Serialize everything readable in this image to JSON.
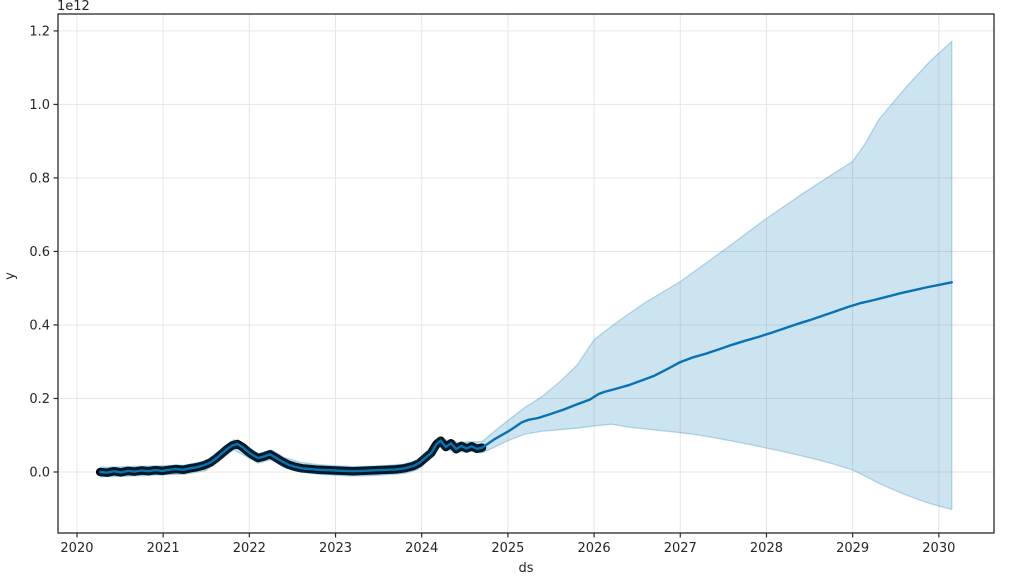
{
  "figure": {
    "offset_text": "1e12",
    "ylabel": "y",
    "xlabel": "ds"
  },
  "chart_data": {
    "type": "line",
    "title": "",
    "xlabel": "ds",
    "ylabel": "y",
    "y_offset_text": "1e12",
    "y_unit_scale": 1000000000000,
    "xlim": [
      2019.78,
      2030.64
    ],
    "ylim": [
      -0.166,
      1.246
    ],
    "grid": true,
    "legend_position": "none",
    "x_ticks": {
      "values": [
        2020,
        2021,
        2022,
        2023,
        2024,
        2025,
        2026,
        2027,
        2028,
        2029,
        2030
      ],
      "labels": [
        "2020",
        "2021",
        "2022",
        "2023",
        "2024",
        "2025",
        "2026",
        "2027",
        "2028",
        "2029",
        "2030"
      ]
    },
    "y_ticks": {
      "values": [
        0.0,
        0.2,
        0.4,
        0.6,
        0.8,
        1.0,
        1.2
      ],
      "labels": [
        "0.0",
        "0.2",
        "0.4",
        "0.6",
        "0.8",
        "1.0",
        "1.2"
      ]
    },
    "colors": {
      "observed": "#000000",
      "forecast_line": "#0c72b2",
      "band_fill": "rgba(0,114,178,0.2)",
      "band_edge": "rgba(0,114,178,0.25)",
      "grid": "#e6e6e6",
      "spine": "#2a2a2a",
      "tick_label": "#262626"
    },
    "series": [
      {
        "name": "observed",
        "type": "scatter",
        "x": [
          2020.27,
          2020.35,
          2020.43,
          2020.51,
          2020.59,
          2020.67,
          2020.75,
          2020.83,
          2020.91,
          2020.99,
          2021.07,
          2021.15,
          2021.23,
          2021.31,
          2021.39,
          2021.47,
          2021.55,
          2021.62,
          2021.68,
          2021.74,
          2021.8,
          2021.86,
          2021.92,
          2021.98,
          2022.04,
          2022.1,
          2022.17,
          2022.24,
          2022.3,
          2022.37,
          2022.45,
          2022.53,
          2022.61,
          2022.7,
          2022.8,
          2022.9,
          2023.0,
          2023.1,
          2023.2,
          2023.3,
          2023.4,
          2023.5,
          2023.6,
          2023.7,
          2023.8,
          2023.9,
          2023.97,
          2024.04,
          2024.11,
          2024.17,
          2024.22,
          2024.28,
          2024.34,
          2024.4,
          2024.46,
          2024.52,
          2024.58,
          2024.64,
          2024.7
        ],
        "y": [
          0.0,
          -0.002,
          0.002,
          -0.001,
          0.003,
          0.001,
          0.004,
          0.002,
          0.005,
          0.003,
          0.006,
          0.008,
          0.006,
          0.01,
          0.013,
          0.018,
          0.026,
          0.038,
          0.05,
          0.062,
          0.072,
          0.076,
          0.068,
          0.056,
          0.046,
          0.038,
          0.042,
          0.048,
          0.04,
          0.03,
          0.02,
          0.014,
          0.01,
          0.008,
          0.006,
          0.005,
          0.004,
          0.003,
          0.002,
          0.003,
          0.004,
          0.005,
          0.006,
          0.007,
          0.01,
          0.016,
          0.024,
          0.038,
          0.052,
          0.075,
          0.085,
          0.068,
          0.078,
          0.062,
          0.071,
          0.064,
          0.07,
          0.063,
          0.066
        ]
      },
      {
        "name": "forecast",
        "type": "line",
        "x": [
          2020.27,
          2020.35,
          2020.43,
          2020.51,
          2020.59,
          2020.67,
          2020.75,
          2020.83,
          2020.91,
          2020.99,
          2021.07,
          2021.15,
          2021.23,
          2021.31,
          2021.39,
          2021.47,
          2021.55,
          2021.62,
          2021.68,
          2021.74,
          2021.8,
          2021.86,
          2021.92,
          2021.98,
          2022.04,
          2022.1,
          2022.17,
          2022.24,
          2022.3,
          2022.37,
          2022.45,
          2022.53,
          2022.61,
          2022.7,
          2022.8,
          2022.9,
          2023.0,
          2023.1,
          2023.2,
          2023.3,
          2023.4,
          2023.5,
          2023.6,
          2023.7,
          2023.8,
          2023.9,
          2023.97,
          2024.04,
          2024.11,
          2024.17,
          2024.22,
          2024.28,
          2024.34,
          2024.4,
          2024.46,
          2024.52,
          2024.58,
          2024.64,
          2024.7,
          2024.85,
          2025.0,
          2025.08,
          2025.16,
          2025.24,
          2025.35,
          2025.5,
          2025.65,
          2025.8,
          2025.95,
          2026.05,
          2026.12,
          2026.25,
          2026.4,
          2026.55,
          2026.7,
          2026.85,
          2027.0,
          2027.15,
          2027.3,
          2027.45,
          2027.6,
          2027.75,
          2027.9,
          2028.05,
          2028.2,
          2028.35,
          2028.5,
          2028.65,
          2028.8,
          2028.95,
          2029.1,
          2029.25,
          2029.4,
          2029.55,
          2029.7,
          2029.85,
          2030.0,
          2030.15
        ],
        "y": [
          0.0,
          -0.002,
          0.002,
          -0.001,
          0.003,
          0.001,
          0.004,
          0.002,
          0.005,
          0.003,
          0.006,
          0.008,
          0.006,
          0.01,
          0.013,
          0.018,
          0.026,
          0.038,
          0.05,
          0.062,
          0.072,
          0.076,
          0.068,
          0.056,
          0.046,
          0.038,
          0.042,
          0.048,
          0.04,
          0.03,
          0.02,
          0.014,
          0.01,
          0.008,
          0.006,
          0.005,
          0.004,
          0.003,
          0.002,
          0.003,
          0.004,
          0.005,
          0.006,
          0.007,
          0.01,
          0.016,
          0.024,
          0.038,
          0.052,
          0.075,
          0.085,
          0.068,
          0.078,
          0.062,
          0.071,
          0.064,
          0.07,
          0.063,
          0.066,
          0.09,
          0.11,
          0.122,
          0.135,
          0.142,
          0.147,
          0.158,
          0.17,
          0.184,
          0.197,
          0.212,
          0.218,
          0.226,
          0.236,
          0.249,
          0.262,
          0.28,
          0.299,
          0.312,
          0.322,
          0.334,
          0.346,
          0.357,
          0.367,
          0.378,
          0.39,
          0.402,
          0.413,
          0.425,
          0.437,
          0.449,
          0.46,
          0.468,
          0.477,
          0.486,
          0.494,
          0.502,
          0.509,
          0.516
        ]
      },
      {
        "name": "uncertainty_interval",
        "type": "band",
        "x": [
          2020.27,
          2020.5,
          2020.75,
          2021.0,
          2021.25,
          2021.5,
          2021.7,
          2021.82,
          2021.95,
          2022.1,
          2022.26,
          2022.4,
          2022.6,
          2022.8,
          2023.0,
          2023.2,
          2023.4,
          2023.6,
          2023.8,
          2023.95,
          2024.1,
          2024.2,
          2024.3,
          2024.42,
          2024.54,
          2024.7,
          2024.85,
          2025.0,
          2025.2,
          2025.4,
          2025.6,
          2025.8,
          2026.0,
          2026.2,
          2026.4,
          2026.6,
          2026.8,
          2027.0,
          2027.2,
          2027.4,
          2027.6,
          2027.8,
          2028.0,
          2028.2,
          2028.4,
          2028.6,
          2028.8,
          2029.0,
          2029.15,
          2029.3,
          2029.45,
          2029.6,
          2029.75,
          2029.9,
          2030.05,
          2030.15
        ],
        "lower": [
          -0.013,
          -0.012,
          -0.01,
          -0.008,
          -0.006,
          0.004,
          0.04,
          0.06,
          0.044,
          0.024,
          0.034,
          0.013,
          0.0,
          -0.006,
          -0.009,
          -0.011,
          -0.01,
          -0.008,
          -0.004,
          0.006,
          0.036,
          0.068,
          0.06,
          0.054,
          0.056,
          0.052,
          0.068,
          0.085,
          0.103,
          0.111,
          0.115,
          0.119,
          0.125,
          0.13,
          0.122,
          0.117,
          0.112,
          0.107,
          0.101,
          0.093,
          0.084,
          0.075,
          0.065,
          0.055,
          0.044,
          0.033,
          0.02,
          0.005,
          -0.012,
          -0.03,
          -0.046,
          -0.061,
          -0.074,
          -0.086,
          -0.096,
          -0.102
        ],
        "upper": [
          0.013,
          0.014,
          0.016,
          0.017,
          0.019,
          0.03,
          0.066,
          0.088,
          0.072,
          0.05,
          0.06,
          0.04,
          0.026,
          0.02,
          0.017,
          0.015,
          0.016,
          0.018,
          0.022,
          0.032,
          0.062,
          0.094,
          0.086,
          0.08,
          0.082,
          0.082,
          0.112,
          0.14,
          0.176,
          0.206,
          0.245,
          0.29,
          0.36,
          0.396,
          0.43,
          0.462,
          0.49,
          0.518,
          0.552,
          0.586,
          0.62,
          0.655,
          0.69,
          0.722,
          0.754,
          0.785,
          0.815,
          0.845,
          0.895,
          0.958,
          1.0,
          1.042,
          1.08,
          1.118,
          1.15,
          1.172
        ]
      }
    ]
  }
}
